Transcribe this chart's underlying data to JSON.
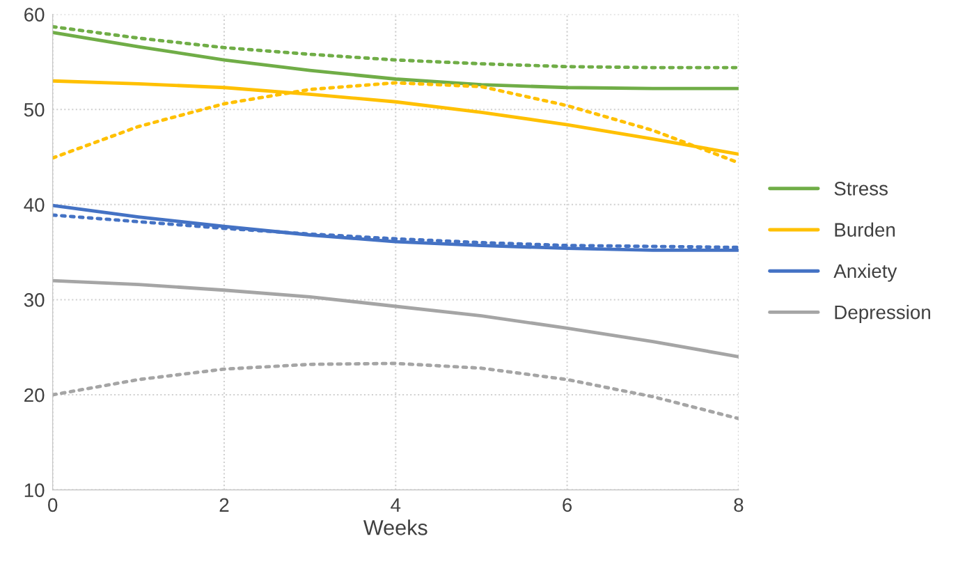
{
  "chart_data": {
    "type": "line",
    "xlabel": "Weeks",
    "x": [
      0,
      1,
      2,
      3,
      4,
      5,
      6,
      7,
      8
    ],
    "xlim": [
      0,
      8
    ],
    "xticks": [
      0,
      2,
      4,
      6,
      8
    ],
    "ylim": [
      10,
      60
    ],
    "yticks": [
      10,
      20,
      30,
      40,
      50,
      60
    ],
    "grid": true,
    "legend": "right",
    "marker": "none",
    "series": [
      {
        "name": "Stress",
        "color": "#70ad47",
        "line_style": "solid",
        "values": [
          58.1,
          56.6,
          55.2,
          54.1,
          53.2,
          52.6,
          52.3,
          52.2,
          52.2
        ]
      },
      {
        "name": "Burden",
        "color": "#ffc000",
        "line_style": "solid",
        "values": [
          53.0,
          52.7,
          52.3,
          51.6,
          50.8,
          49.7,
          48.4,
          46.9,
          45.3
        ]
      },
      {
        "name": "Anxiety",
        "color": "#4472c4",
        "line_style": "solid",
        "values": [
          39.9,
          38.7,
          37.7,
          36.8,
          36.1,
          35.7,
          35.4,
          35.2,
          35.2
        ]
      },
      {
        "name": "Depression",
        "color": "#a5a5a5",
        "line_style": "solid",
        "values": [
          32.0,
          31.6,
          31.0,
          30.3,
          29.3,
          28.3,
          27.0,
          25.6,
          24.0
        ]
      },
      {
        "color": "#70ad47",
        "line_style": "dotted",
        "values": [
          58.7,
          57.5,
          56.5,
          55.8,
          55.2,
          54.8,
          54.5,
          54.4,
          54.4
        ]
      },
      {
        "color": "#ffc000",
        "line_style": "dotted",
        "values": [
          44.9,
          48.2,
          50.6,
          52.1,
          52.8,
          52.4,
          50.4,
          47.8,
          44.4
        ]
      },
      {
        "color": "#4472c4",
        "line_style": "dotted",
        "values": [
          38.9,
          38.2,
          37.5,
          36.9,
          36.4,
          36.0,
          35.7,
          35.6,
          35.5
        ]
      },
      {
        "color": "#a5a5a5",
        "line_style": "dotted",
        "values": [
          20.0,
          21.6,
          22.7,
          23.2,
          23.3,
          22.8,
          21.6,
          19.8,
          17.5
        ]
      }
    ]
  }
}
